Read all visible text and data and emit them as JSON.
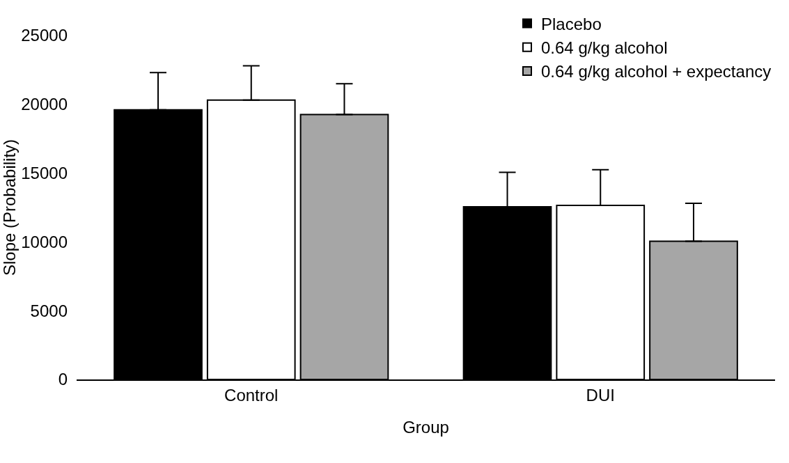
{
  "chart_data": {
    "type": "bar",
    "xlabel": "Group",
    "ylabel": "Slope (Probability)",
    "categories": [
      "Control",
      "DUI"
    ],
    "series": [
      {
        "name": "Placebo",
        "color": "#000000",
        "values": [
          19600,
          12550
        ],
        "errors": [
          [
            19600,
            22300
          ],
          [
            12550,
            15050
          ]
        ]
      },
      {
        "name": "0.64 g/kg alcohol",
        "color": "#ffffff",
        "values": [
          20300,
          12650
        ],
        "errors": [
          [
            20300,
            22800
          ],
          [
            12650,
            15250
          ]
        ]
      },
      {
        "name": "0.64 g/kg alcohol + expectancy",
        "color": "#a6a6a6",
        "values": [
          19250,
          10050
        ],
        "errors": [
          [
            19250,
            21500
          ],
          [
            10050,
            12800
          ]
        ]
      }
    ],
    "ylim": [
      0,
      25000
    ],
    "yticks": [
      0,
      5000,
      10000,
      15000,
      20000,
      25000
    ],
    "grid": false,
    "legend": "top right"
  }
}
